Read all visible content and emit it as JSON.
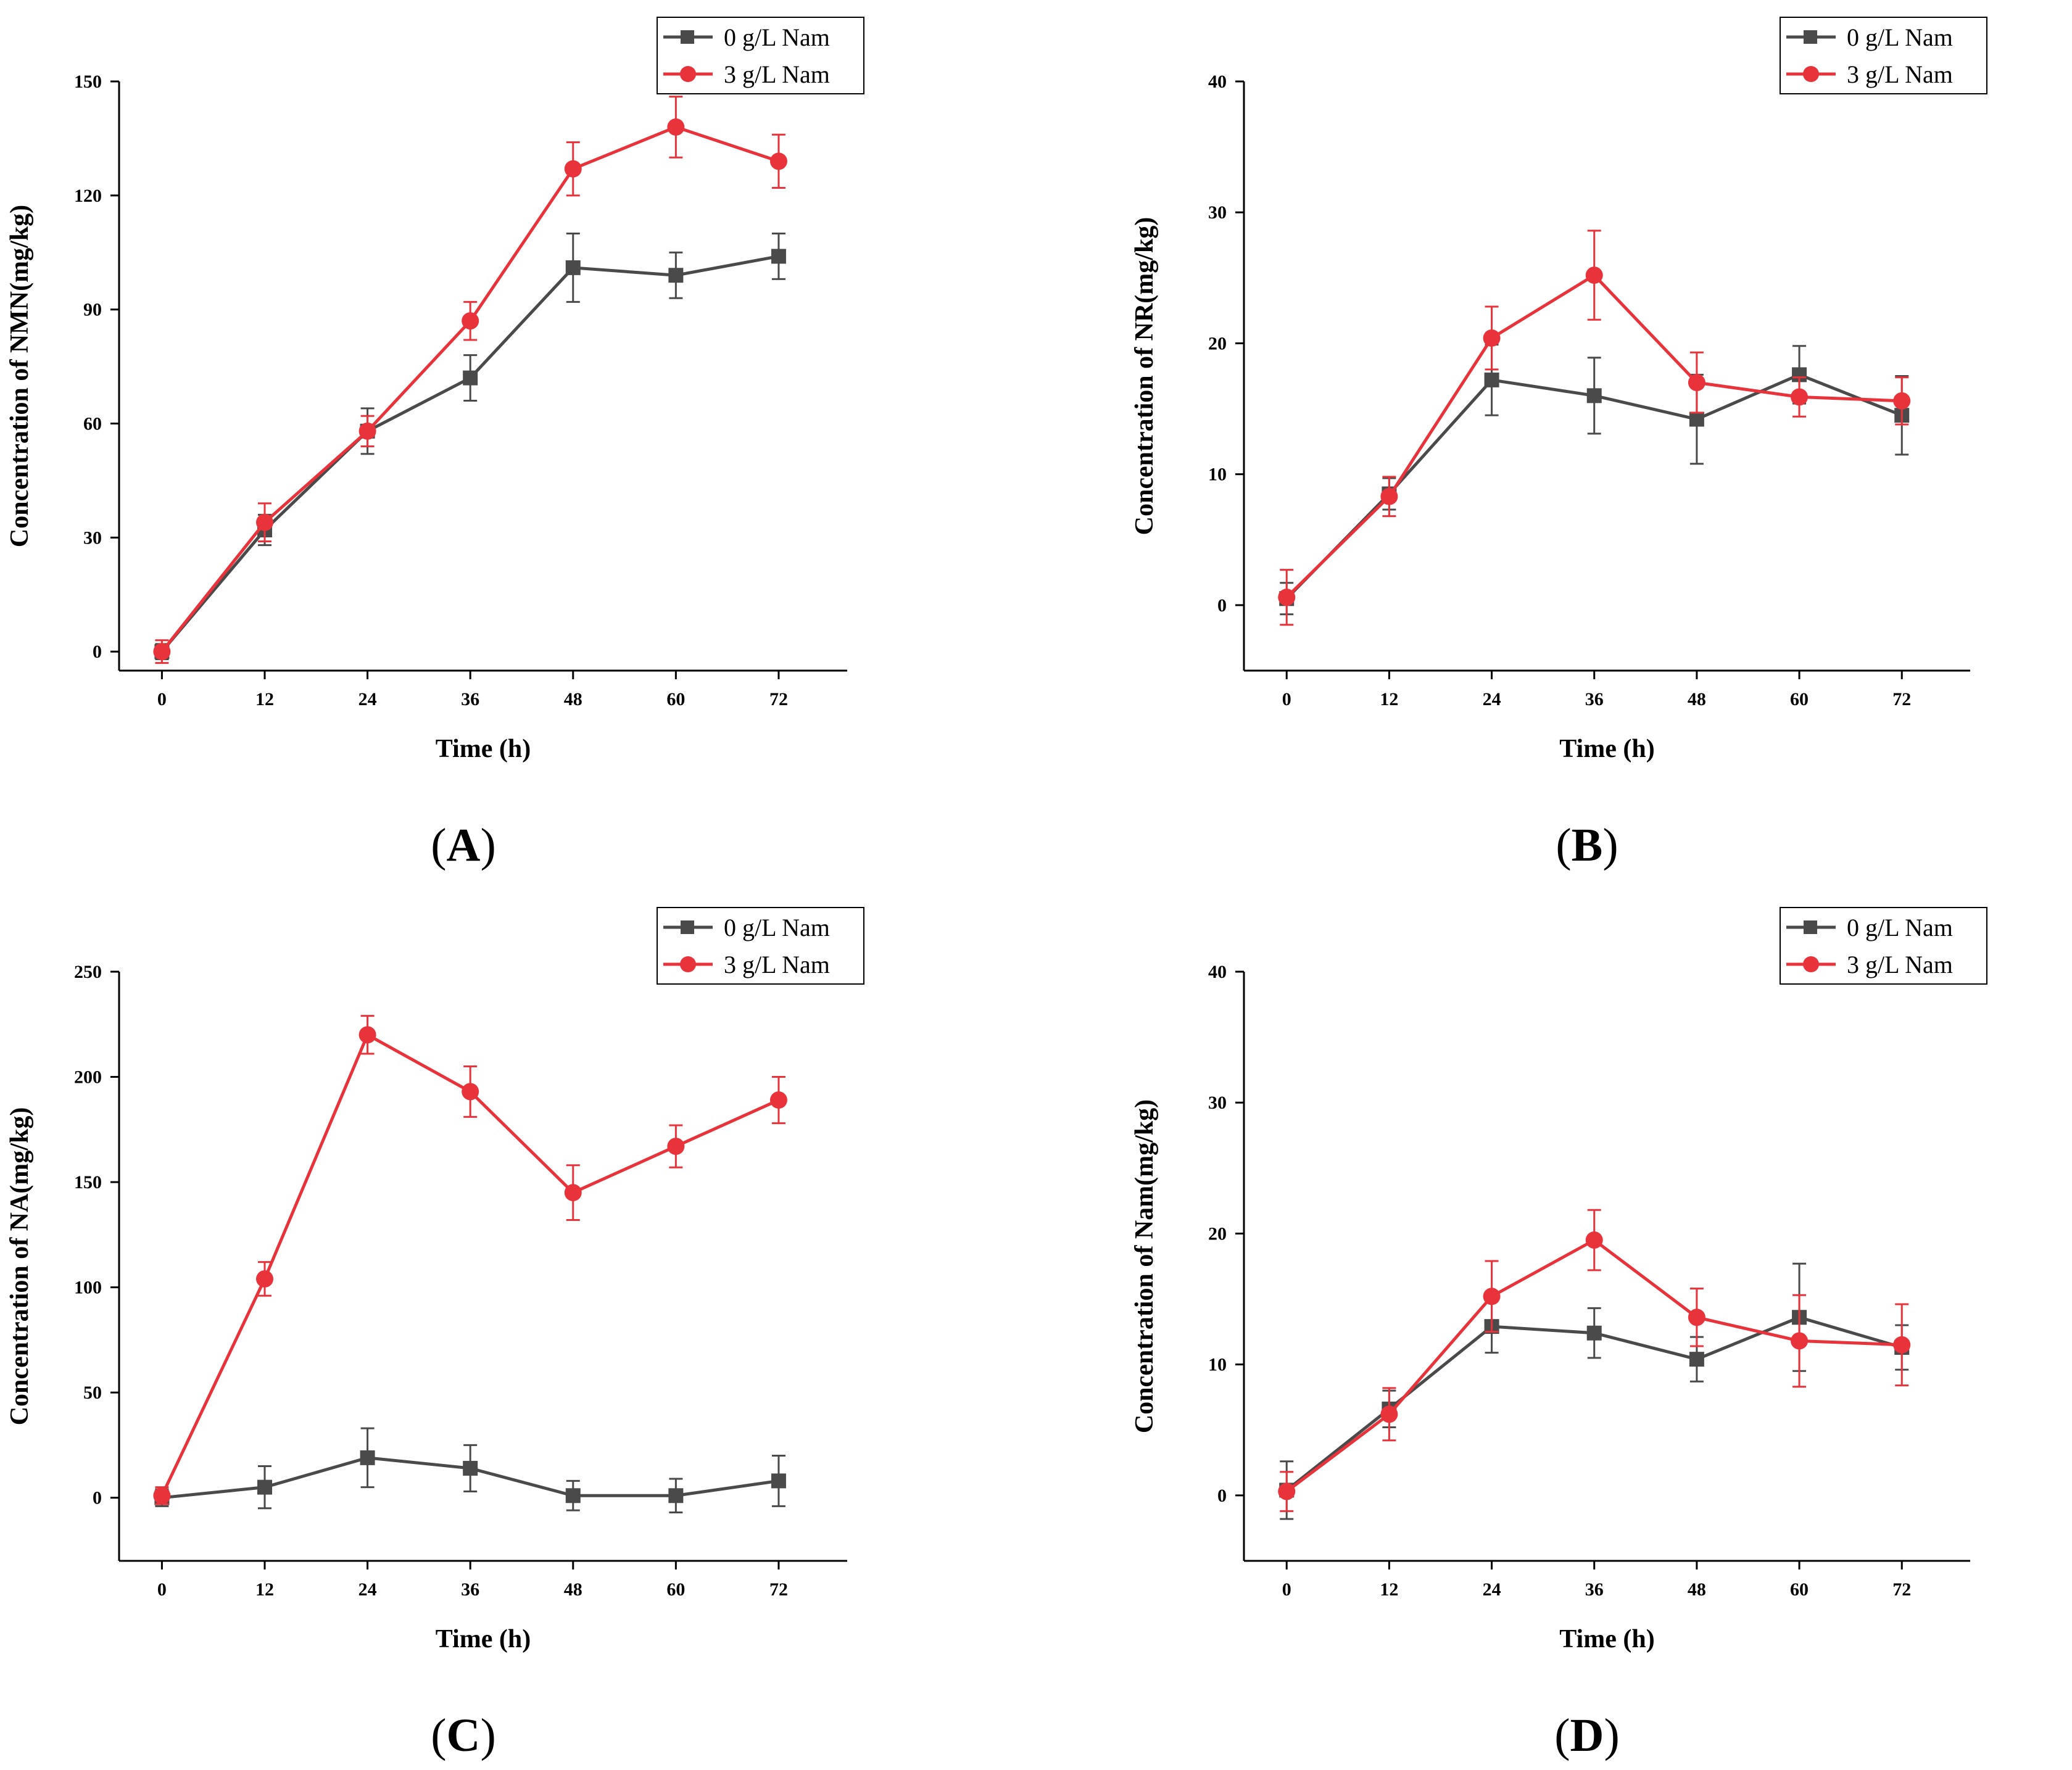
{
  "colors": {
    "series0": "#4a4a4a",
    "series1": "#e8333b",
    "axis": "#000000"
  },
  "chart_data": [
    {
      "type": "line",
      "panel_label": "A",
      "xlabel": "Time (h)",
      "ylabel": "Concentration of NMN(mg/kg)",
      "xticks": [
        0,
        12,
        24,
        36,
        48,
        60,
        72
      ],
      "yticks": [
        0,
        30,
        60,
        90,
        120,
        150
      ],
      "xlim": [
        -5,
        80
      ],
      "ylim": [
        -5,
        150
      ],
      "legend_position": "top-right",
      "x": [
        0,
        12,
        24,
        36,
        48,
        60,
        72
      ],
      "series": [
        {
          "name": "0 g/L Nam",
          "marker": "square",
          "values": [
            0,
            32,
            58,
            72,
            101,
            99,
            104
          ],
          "errors": [
            2,
            4,
            6,
            6,
            9,
            6,
            6
          ]
        },
        {
          "name": "3 g/L Nam",
          "marker": "circle",
          "values": [
            0,
            34,
            58,
            87,
            127,
            138,
            129
          ],
          "errors": [
            3,
            5,
            4,
            5,
            7,
            8,
            7
          ]
        }
      ]
    },
    {
      "type": "line",
      "panel_label": "B",
      "xlabel": "Time (h)",
      "ylabel": "Concentration of NR(mg/kg)",
      "xticks": [
        0,
        12,
        24,
        36,
        48,
        60,
        72
      ],
      "yticks": [
        0,
        10,
        20,
        30,
        40
      ],
      "xlim": [
        -5,
        80
      ],
      "ylim": [
        -5,
        40
      ],
      "legend_position": "top-right",
      "x": [
        0,
        12,
        24,
        36,
        48,
        60,
        72
      ],
      "series": [
        {
          "name": "0 g/L Nam",
          "marker": "square",
          "values": [
            0.5,
            8.5,
            17.2,
            16.0,
            14.2,
            17.6,
            14.5
          ],
          "errors": [
            1.2,
            1.2,
            2.7,
            2.9,
            3.4,
            2.2,
            3.0
          ]
        },
        {
          "name": "3 g/L Nam",
          "marker": "circle",
          "values": [
            0.6,
            8.3,
            20.4,
            25.2,
            17.0,
            15.9,
            15.6
          ],
          "errors": [
            2.1,
            1.5,
            2.4,
            3.4,
            2.3,
            1.5,
            1.8
          ]
        }
      ]
    },
    {
      "type": "line",
      "panel_label": "C",
      "xlabel": "Time (h)",
      "ylabel": "Concentration of NA(mg/kg)",
      "xticks": [
        0,
        12,
        24,
        36,
        48,
        60,
        72
      ],
      "yticks": [
        0,
        50,
        100,
        150,
        200,
        250
      ],
      "xlim": [
        -5,
        80
      ],
      "ylim": [
        -30,
        250
      ],
      "legend_position": "top-right",
      "x": [
        0,
        12,
        24,
        36,
        48,
        60,
        72
      ],
      "series": [
        {
          "name": "0 g/L Nam",
          "marker": "square",
          "values": [
            0,
            5,
            19,
            14,
            1,
            1,
            8
          ],
          "errors": [
            4,
            10,
            14,
            11,
            7,
            8,
            12
          ]
        },
        {
          "name": "3 g/L Nam",
          "marker": "circle",
          "values": [
            1,
            104,
            220,
            193,
            145,
            167,
            189
          ],
          "errors": [
            4,
            8,
            9,
            12,
            13,
            10,
            11
          ]
        }
      ]
    },
    {
      "type": "line",
      "panel_label": "D",
      "xlabel": "Time (h)",
      "ylabel": "Concentration of Nam(mg/kg)",
      "xticks": [
        0,
        12,
        24,
        36,
        48,
        60,
        72
      ],
      "yticks": [
        0,
        10,
        20,
        30,
        40
      ],
      "xlim": [
        -5,
        80
      ],
      "ylim": [
        -5,
        40
      ],
      "legend_position": "top-right",
      "x": [
        0,
        12,
        24,
        36,
        48,
        60,
        72
      ],
      "series": [
        {
          "name": "0 g/L Nam",
          "marker": "square",
          "values": [
            0.4,
            6.6,
            12.9,
            12.4,
            10.4,
            13.6,
            11.3
          ],
          "errors": [
            2.2,
            1.4,
            2.0,
            1.9,
            1.7,
            4.1,
            1.7
          ]
        },
        {
          "name": "3 g/L Nam",
          "marker": "circle",
          "values": [
            0.3,
            6.2,
            15.2,
            19.5,
            13.6,
            11.8,
            11.5
          ],
          "errors": [
            1.5,
            2.0,
            2.7,
            2.3,
            2.2,
            3.5,
            3.1
          ]
        }
      ]
    }
  ]
}
